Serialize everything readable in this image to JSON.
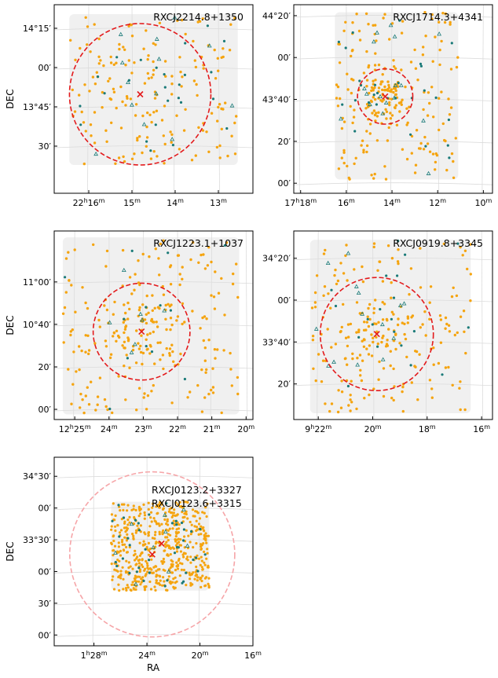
{
  "figure": {
    "xlabel": "RA",
    "ylabel": "DEC"
  },
  "colors": {
    "member": "#f5a40f",
    "spec": "#1a7a78",
    "circle": "#e31a1c",
    "circle_faint": "#f6a5a8",
    "footprint": "#f0f0f0",
    "grid": "#dcdcdc",
    "center": "#e31a1c"
  },
  "chart_data": [
    {
      "type": "scatter",
      "title": "RXCJ2214.8+1350",
      "xlabel": "",
      "ylabel": "DEC",
      "ra_ticks": [
        {
          "v": 16.0,
          "h": "22",
          "m": "16",
          "s": ""
        },
        {
          "v": 15.0,
          "h": "",
          "m": "15",
          "s": ""
        },
        {
          "v": 14.0,
          "h": "",
          "m": "14",
          "s": ""
        },
        {
          "v": 13.0,
          "h": "",
          "m": "13",
          "s": ""
        }
      ],
      "dec_ticks": [
        {
          "v": 14.25,
          "t": "14°15′"
        },
        {
          "v": 14.0,
          "t": "00′"
        },
        {
          "v": 13.75,
          "t": "13°45′"
        },
        {
          "v": 13.5,
          "t": "30′"
        }
      ],
      "xlim_min": [
        16.8,
        12.2
      ],
      "ylim_deg": [
        13.2,
        14.4
      ],
      "center": [
        14.81,
        13.83
      ],
      "radius_deg": 0.45,
      "circle_faint": false,
      "footprint": [
        16.45,
        12.55,
        13.38,
        14.34
      ],
      "n_members": 180,
      "n_spec": 38,
      "seed": 11
    },
    {
      "type": "scatter",
      "title": "RXCJ1714.3+4341",
      "xlabel": "",
      "ylabel": "",
      "ra_ticks": [
        {
          "v": 18.0,
          "h": "17",
          "m": "18",
          "s": ""
        },
        {
          "v": 16.0,
          "h": "",
          "m": "16",
          "s": ""
        },
        {
          "v": 14.0,
          "h": "",
          "m": "14",
          "s": ""
        },
        {
          "v": 12.0,
          "h": "",
          "m": "12",
          "s": ""
        },
        {
          "v": 10.0,
          "h": "",
          "m": "10",
          "s": ""
        }
      ],
      "dec_ticks": [
        {
          "v": 44.333,
          "t": "44°20′"
        },
        {
          "v": 44.0,
          "t": "00′"
        },
        {
          "v": 43.667,
          "t": "43°40′"
        },
        {
          "v": 43.333,
          "t": "20′"
        },
        {
          "v": 43.0,
          "t": "00′"
        }
      ],
      "xlim_min": [
        18.3,
        9.6
      ],
      "ylim_deg": [
        42.92,
        44.42
      ],
      "center": [
        14.3,
        43.69
      ],
      "radius_deg": 0.22,
      "circle_faint": false,
      "footprint": [
        16.5,
        11.1,
        43.03,
        44.36
      ],
      "n_members": 240,
      "n_spec": 45,
      "seed": 23
    },
    {
      "type": "scatter",
      "title": "RXCJ1223.1+1037",
      "xlabel": "",
      "ylabel": "DEC",
      "ra_ticks": [
        {
          "v": 25.0,
          "h": "12",
          "m": "25",
          "s": ""
        },
        {
          "v": 24.0,
          "h": "",
          "m": "24",
          "s": ""
        },
        {
          "v": 23.0,
          "h": "",
          "m": "23",
          "s": ""
        },
        {
          "v": 22.0,
          "h": "",
          "m": "22",
          "s": ""
        },
        {
          "v": 21.0,
          "h": "",
          "m": "21",
          "s": ""
        },
        {
          "v": 20.0,
          "h": "",
          "m": "20",
          "s": ""
        }
      ],
      "dec_ticks": [
        {
          "v": 11.0,
          "t": "11°00′"
        },
        {
          "v": 10.667,
          "t": "10°40′"
        },
        {
          "v": 10.333,
          "t": "20′"
        },
        {
          "v": 10.0,
          "t": "00′"
        }
      ],
      "xlim_min": [
        25.6,
        19.8
      ],
      "ylim_deg": [
        9.92,
        11.4
      ],
      "center": [
        23.05,
        10.61
      ],
      "radius_deg": 0.38,
      "circle_faint": false,
      "footprint": [
        25.35,
        20.2,
        9.96,
        11.35
      ],
      "n_members": 260,
      "n_spec": 20,
      "seed": 37
    },
    {
      "type": "scatter",
      "title": "RXCJ0919.8+3345",
      "xlabel": "",
      "ylabel": "",
      "ra_ticks": [
        {
          "v": 22.0,
          "h": "9",
          "m": "22",
          "s": ""
        },
        {
          "v": 20.0,
          "h": "",
          "m": "20",
          "s": ""
        },
        {
          "v": 18.0,
          "h": "",
          "m": "18",
          "s": ""
        },
        {
          "v": 16.0,
          "h": "",
          "m": "16",
          "s": ""
        }
      ],
      "dec_ticks": [
        {
          "v": 34.333,
          "t": "34°20′"
        },
        {
          "v": 34.0,
          "t": "00′"
        },
        {
          "v": 33.667,
          "t": "33°40′"
        },
        {
          "v": 33.333,
          "t": "20′"
        }
      ],
      "xlim_min": [
        22.9,
        15.6
      ],
      "ylim_deg": [
        33.05,
        34.55
      ],
      "center": [
        19.85,
        33.73
      ],
      "radius_deg": 0.45,
      "circle_faint": false,
      "footprint": [
        22.3,
        16.4,
        33.1,
        34.48
      ],
      "n_members": 230,
      "n_spec": 35,
      "seed": 53
    },
    {
      "type": "scatter",
      "title": "RXCJ0123.2+3327",
      "title2": "RXCJ0123.6+3315",
      "xlabel": "RA",
      "ylabel": "DEC",
      "ra_ticks": [
        {
          "v": 28.0,
          "h": "1",
          "m": "28",
          "s": ""
        },
        {
          "v": 24.0,
          "h": "",
          "m": "24",
          "s": ""
        },
        {
          "v": 20.0,
          "h": "",
          "m": "20",
          "s": ""
        },
        {
          "v": 16.0,
          "h": "",
          "m": "16",
          "s": ""
        }
      ],
      "dec_ticks": [
        {
          "v": 34.5,
          "t": "34°30′"
        },
        {
          "v": 34.0,
          "t": "00′"
        },
        {
          "v": 33.5,
          "t": "33°30′"
        },
        {
          "v": 33.0,
          "t": "00′"
        },
        {
          "v": 32.5,
          "t": "30′"
        },
        {
          "v": 32.0,
          "t": "00′"
        }
      ],
      "xlim_min": [
        31.0,
        16.0
      ],
      "ylim_deg": [
        31.83,
        34.8
      ],
      "center": [
        23.6,
        33.27
      ],
      "radius_deg": 1.3,
      "center2": [
        22.9,
        33.44
      ],
      "circle_faint": true,
      "footprint": [
        26.7,
        19.3,
        32.7,
        34.1
      ],
      "n_members": 650,
      "n_spec": 60,
      "seed": 71
    }
  ]
}
